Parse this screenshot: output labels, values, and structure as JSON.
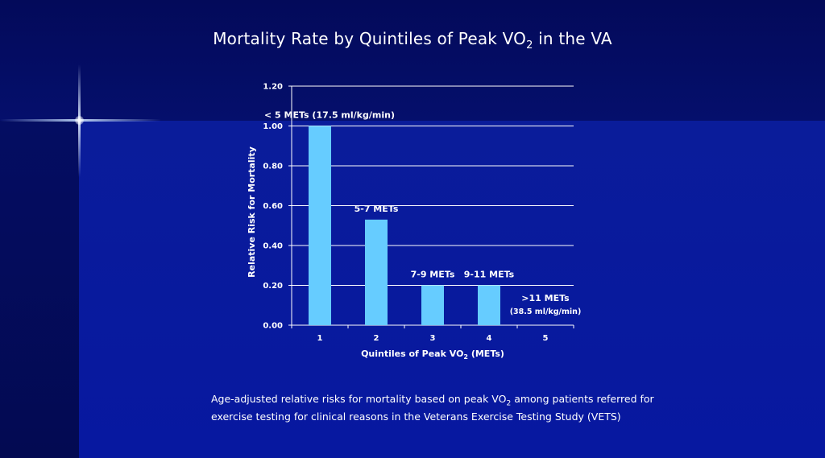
{
  "title": {
    "main": "Mortality Rate by Quintiles of Peak VO",
    "subscript": "2",
    "suffix": " in the VA"
  },
  "caption": {
    "part1": "Age-adjusted relative risks for mortality based on peak VO",
    "subscript": "2",
    "part2": " among patients referred for exercise testing for clinical reasons in the Veterans Exercise Testing Study (VETS)"
  },
  "chart_data": {
    "type": "bar",
    "categories": [
      "1",
      "2",
      "3",
      "4",
      "5"
    ],
    "values": [
      1.0,
      0.53,
      0.2,
      0.2,
      0.0
    ],
    "ylim": [
      0,
      1.2
    ],
    "yticks": [
      "0.00",
      "0.20",
      "0.40",
      "0.60",
      "0.80",
      "1.00",
      "1.20"
    ],
    "ylabel": "Relative Risk for Mortality",
    "xlabel": {
      "main": "Quintiles of Peak VO",
      "subscript": "2",
      "suffix": " (METs)"
    },
    "annotations": [
      {
        "lines": [
          "< 5 METs (17.5 ml/kg/min)"
        ]
      },
      {
        "lines": [
          "5-7 METs"
        ]
      },
      {
        "lines": [
          "7-9 METs"
        ]
      },
      {
        "lines": [
          "9-11 METs"
        ]
      },
      {
        "lines": [
          ">11 METs",
          "(38.5 ml/kg/min)"
        ]
      }
    ],
    "grid": true,
    "colors": {
      "bar": "#66ccff",
      "grid": "#ffffff",
      "text": "#ffffff"
    }
  }
}
